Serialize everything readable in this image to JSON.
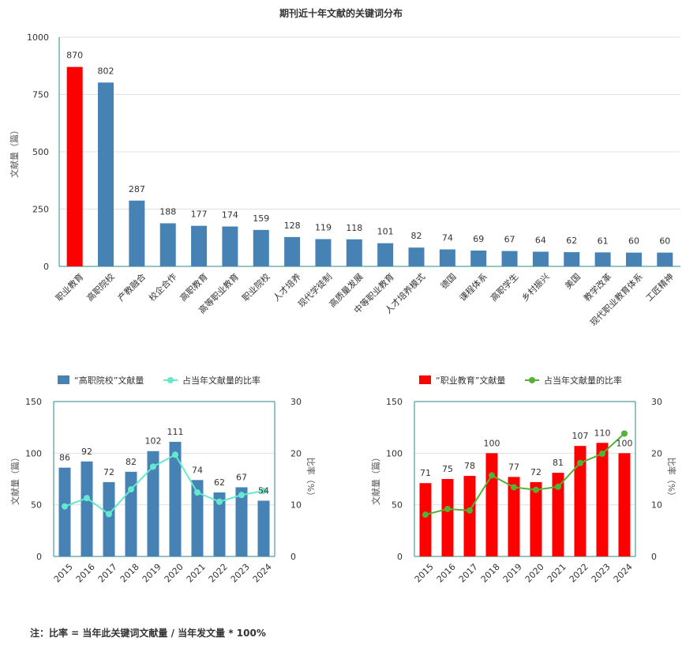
{
  "title": "期刊近十年文献的关键词分布",
  "footnote": "注：比率 = 当年此关键词文献量 / 当年发文量 * 100%",
  "colors": {
    "blue": "#4682b4",
    "red": "#ff0000",
    "cyan": "#66e8cc",
    "green": "#55b135",
    "grid": "#e0e0e0",
    "axis": "#2a8a8a"
  },
  "chart_data": [
    {
      "type": "bar",
      "title": "期刊近十年文献的关键词分布",
      "ylabel": "文献量（篇）",
      "ylim": [
        0,
        1000
      ],
      "yticks": [
        0,
        250,
        500,
        750,
        1000
      ],
      "categories": [
        "职业教育",
        "高职院校",
        "产教融合",
        "校企合作",
        "高职教育",
        "高等职业教育",
        "职业院校",
        "人才培养",
        "现代学徒制",
        "高质量发展",
        "中等职业教育",
        "人才培养模式",
        "德国",
        "课程体系",
        "高职学生",
        "乡村振兴",
        "美国",
        "教学改革",
        "现代职业教育体系",
        "工匠精神"
      ],
      "values": [
        870,
        802,
        287,
        188,
        177,
        174,
        159,
        128,
        119,
        118,
        101,
        82,
        74,
        69,
        67,
        64,
        62,
        61,
        60,
        60
      ],
      "highlight_index": 0
    },
    {
      "type": "bar+line",
      "series": [
        {
          "name": "“高职院校”文献量",
          "values": [
            86,
            92,
            72,
            82,
            102,
            111,
            74,
            62,
            67,
            54
          ]
        },
        {
          "name": "占当年文献量的比率",
          "values": [
            9.7,
            11.3,
            8.2,
            13.0,
            17.4,
            19.7,
            12.4,
            10.6,
            11.9,
            12.7
          ]
        }
      ],
      "categories": [
        "2015",
        "2016",
        "2017",
        "2018",
        "2019",
        "2020",
        "2021",
        "2022",
        "2023",
        "2024"
      ],
      "ylabel": "文献量（篇）",
      "y2label": "比率（%）",
      "ylim": [
        0,
        150
      ],
      "yticks": [
        0,
        50,
        100,
        150
      ],
      "y2lim": [
        0,
        30
      ],
      "y2ticks": [
        0,
        10,
        20,
        30
      ]
    },
    {
      "type": "bar+line",
      "series": [
        {
          "name": "“职业教育”文献量",
          "values": [
            71,
            75,
            78,
            100,
            77,
            72,
            81,
            107,
            110,
            100
          ]
        },
        {
          "name": "占当年文献量的比率",
          "values": [
            8.1,
            9.2,
            8.9,
            15.7,
            13.4,
            12.9,
            13.5,
            18.1,
            19.9,
            23.8
          ]
        }
      ],
      "categories": [
        "2015",
        "2016",
        "2017",
        "2018",
        "2019",
        "2020",
        "2021",
        "2022",
        "2023",
        "2024"
      ],
      "ylabel": "文献量（篇）",
      "y2label": "比率（%）",
      "ylim": [
        0,
        150
      ],
      "yticks": [
        0,
        50,
        100,
        150
      ],
      "y2lim": [
        0,
        30
      ],
      "y2ticks": [
        0,
        10,
        20,
        30
      ]
    }
  ]
}
